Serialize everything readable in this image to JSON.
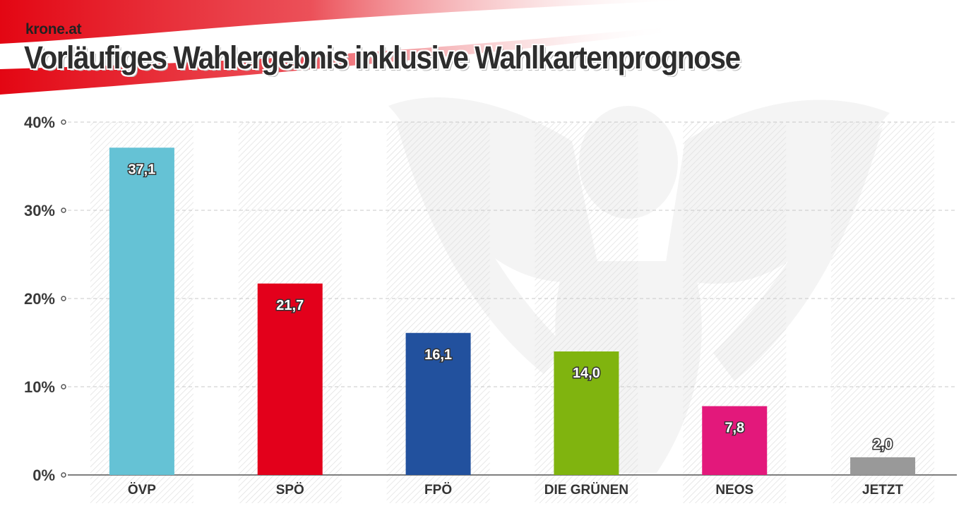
{
  "header": {
    "source": "krone.at",
    "title": "Vorläufiges Wahlergebnis inklusive Wahlkartenprognose"
  },
  "chart_data": {
    "type": "bar",
    "title": "Vorläufiges Wahlergebnis inklusive Wahlkartenprognose",
    "xlabel": "",
    "ylabel": "",
    "ylim": [
      0,
      40
    ],
    "yticks": [
      0,
      10,
      20,
      30,
      40
    ],
    "ytick_labels": [
      "0%",
      "10%",
      "20%",
      "30%",
      "40%"
    ],
    "categories": [
      "ÖVP",
      "SPÖ",
      "FPÖ",
      "DIE GRÜNEN",
      "NEOS",
      "JETZT"
    ],
    "values": [
      37.1,
      21.7,
      16.1,
      14.0,
      7.8,
      2.0
    ],
    "value_labels": [
      "37,1",
      "21,7",
      "16,1",
      "14,0",
      "7,8",
      "2,0"
    ],
    "colors": [
      "#65c2d5",
      "#e3001b",
      "#22519e",
      "#80b40f",
      "#e3187b",
      "#999999"
    ],
    "grid": true,
    "legend": "none"
  }
}
